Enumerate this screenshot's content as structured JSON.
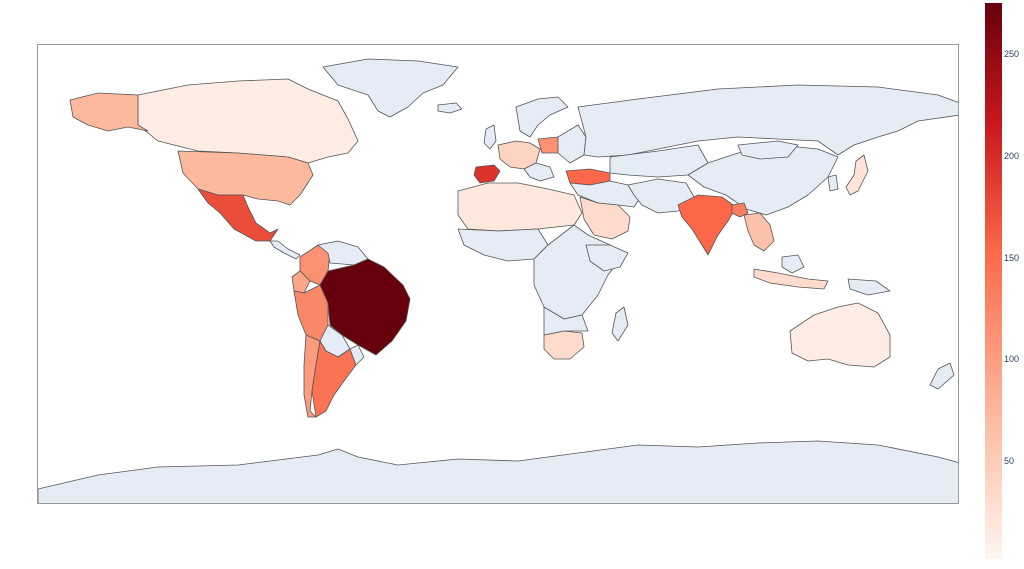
{
  "colors": {
    "no_data": "#e5ecf6",
    "scale": [
      "#fff5f0",
      "#fcbba1",
      "#fb6a4a",
      "#cb181d",
      "#67000d"
    ],
    "border": "#555555"
  },
  "colorbar": {
    "min": 0,
    "max": 270,
    "ticks": [
      "50",
      "100",
      "150",
      "200",
      "250"
    ]
  },
  "regions": [
    {
      "name_id": "brazil",
      "value": 270
    },
    {
      "name_id": "spain",
      "value": 190
    },
    {
      "name_id": "mexico",
      "value": 170
    },
    {
      "name_id": "india",
      "value": 150
    },
    {
      "name_id": "argentina",
      "value": 140
    },
    {
      "name_id": "turkey",
      "value": 150
    },
    {
      "name_id": "peru",
      "value": 120
    },
    {
      "name_id": "colombia",
      "value": 110
    },
    {
      "name_id": "usa",
      "value": 70
    },
    {
      "name_id": "alaska",
      "value": 70
    },
    {
      "name_id": "poland",
      "value": 110
    },
    {
      "name_id": "bangladesh",
      "value": 130
    },
    {
      "name_id": "canada",
      "value": 10
    },
    {
      "name_id": "australia",
      "value": 10
    },
    {
      "name_id": "south-africa",
      "value": 30
    },
    {
      "name_id": "indochina",
      "value": 60
    },
    {
      "name_id": "chile",
      "value": 100
    },
    {
      "name_id": "saudi-arabia",
      "value": 30
    },
    {
      "name_id": "north-africa",
      "value": 15
    },
    {
      "name_id": "europe-central",
      "value": 40
    },
    {
      "name_id": "japan",
      "value": 20
    },
    {
      "name_id": "indonesia",
      "value": 30
    },
    {
      "name_id": "ecuador",
      "value": 90
    }
  ]
}
